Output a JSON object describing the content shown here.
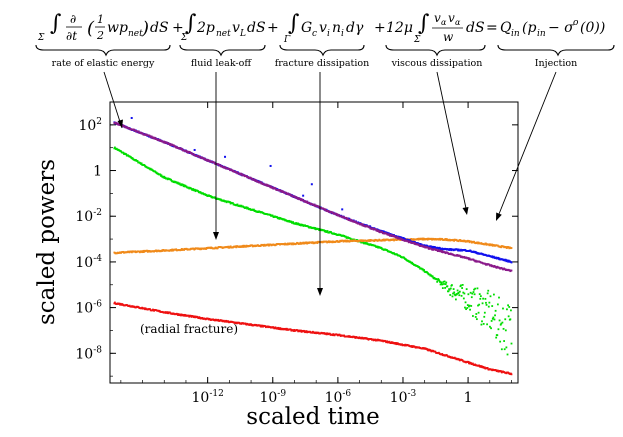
{
  "equation": {
    "term_elastic": "∫Σ ∂/∂t (½ w p_net) dS",
    "plus1": "+",
    "term_leakoff": "∫Σ 2 p_net v_L dS",
    "plus2": "+",
    "term_fracture": "∫Γ G_c v_i n_i dγ",
    "plus3": "+",
    "term_viscous": "12μ ∫Σ (v_α v_α / w) dS",
    "equals": "=",
    "term_injection": "Q_in(p_in − σᵒ(0))",
    "labels": {
      "elastic": "rate of elastic energy",
      "leakoff": "fluid leak-off",
      "fracture": "fracture dissipation",
      "viscous": "viscous dissipation",
      "injection": "Injection"
    }
  },
  "annotation": "(radial fracture)",
  "chart_data": {
    "type": "scatter",
    "xlabel": "scaled time",
    "ylabel": "scaled powers",
    "xscale": "log",
    "yscale": "log",
    "xlim_log10": [
      -16.5,
      2.3
    ],
    "ylim_log10": [
      -9.3,
      3.0
    ],
    "x_ticks": [
      "10-12",
      "10-9",
      "10-6",
      "10-3",
      "1"
    ],
    "x_tick_values_log10": [
      -12,
      -9,
      -6,
      -3,
      0
    ],
    "y_ticks": [
      "102",
      "1",
      "10-2",
      "10-4",
      "10-6",
      "10-8"
    ],
    "y_tick_values_log10": [
      2,
      0,
      -2,
      -4,
      -6,
      -8
    ],
    "series": [
      {
        "name": "rate of elastic energy",
        "color": "#00dd00",
        "points_log10": [
          [
            -16.3,
            1.0
          ],
          [
            -14,
            -0.3
          ],
          [
            -12,
            -1.1
          ],
          [
            -10,
            -1.7
          ],
          [
            -8,
            -2.3
          ],
          [
            -6,
            -2.8
          ],
          [
            -4,
            -3.4
          ],
          [
            -3,
            -3.8
          ],
          [
            -2,
            -4.4
          ],
          [
            -1,
            -5.1
          ],
          [
            0,
            -5.6
          ],
          [
            0.5,
            -5.9
          ],
          [
            1.0,
            -6.2
          ],
          [
            1.5,
            -6.7
          ],
          [
            2.0,
            -7.0
          ]
        ]
      },
      {
        "name": "fluid leak-off",
        "color": "#f08a1a",
        "points_log10": [
          [
            -16.3,
            -3.6
          ],
          [
            -14,
            -3.5
          ],
          [
            -12,
            -3.4
          ],
          [
            -10,
            -3.3
          ],
          [
            -8,
            -3.2
          ],
          [
            -6,
            -3.1
          ],
          [
            -4,
            -3.05
          ],
          [
            -2,
            -3.0
          ],
          [
            -1,
            -3.02
          ],
          [
            0,
            -3.1
          ],
          [
            1,
            -3.25
          ],
          [
            2,
            -3.4
          ]
        ]
      },
      {
        "name": "fracture dissipation",
        "color": "#ee1111",
        "points_log10": [
          [
            -16.3,
            -5.8
          ],
          [
            -14,
            -6.2
          ],
          [
            -12,
            -6.5
          ],
          [
            -10,
            -6.75
          ],
          [
            -8,
            -7.0
          ],
          [
            -6,
            -7.2
          ],
          [
            -4,
            -7.45
          ],
          [
            -2,
            -7.8
          ],
          [
            -1,
            -8.1
          ],
          [
            0,
            -8.4
          ],
          [
            1,
            -8.7
          ],
          [
            2,
            -8.9
          ]
        ]
      },
      {
        "name": "viscous dissipation",
        "color": "#1111ee",
        "points_log10": [
          [
            -16.3,
            2.1
          ],
          [
            -14,
            1.25
          ],
          [
            -12,
            0.45
          ],
          [
            -10,
            -0.35
          ],
          [
            -8,
            -1.15
          ],
          [
            -6,
            -1.95
          ],
          [
            -4,
            -2.65
          ],
          [
            -2,
            -3.3
          ],
          [
            -1,
            -3.45
          ],
          [
            0,
            -3.5
          ],
          [
            1,
            -3.75
          ],
          [
            2,
            -4.0
          ]
        ]
      },
      {
        "name": "Injection",
        "color": "#8a1a8a",
        "points_log10": [
          [
            -16.3,
            2.1
          ],
          [
            -14,
            1.25
          ],
          [
            -12,
            0.45
          ],
          [
            -10,
            -0.35
          ],
          [
            -8,
            -1.15
          ],
          [
            -6,
            -1.95
          ],
          [
            -4,
            -2.7
          ],
          [
            -2,
            -3.35
          ],
          [
            -1,
            -3.6
          ],
          [
            0,
            -3.85
          ],
          [
            1,
            -4.15
          ],
          [
            2,
            -4.4
          ]
        ]
      }
    ]
  }
}
